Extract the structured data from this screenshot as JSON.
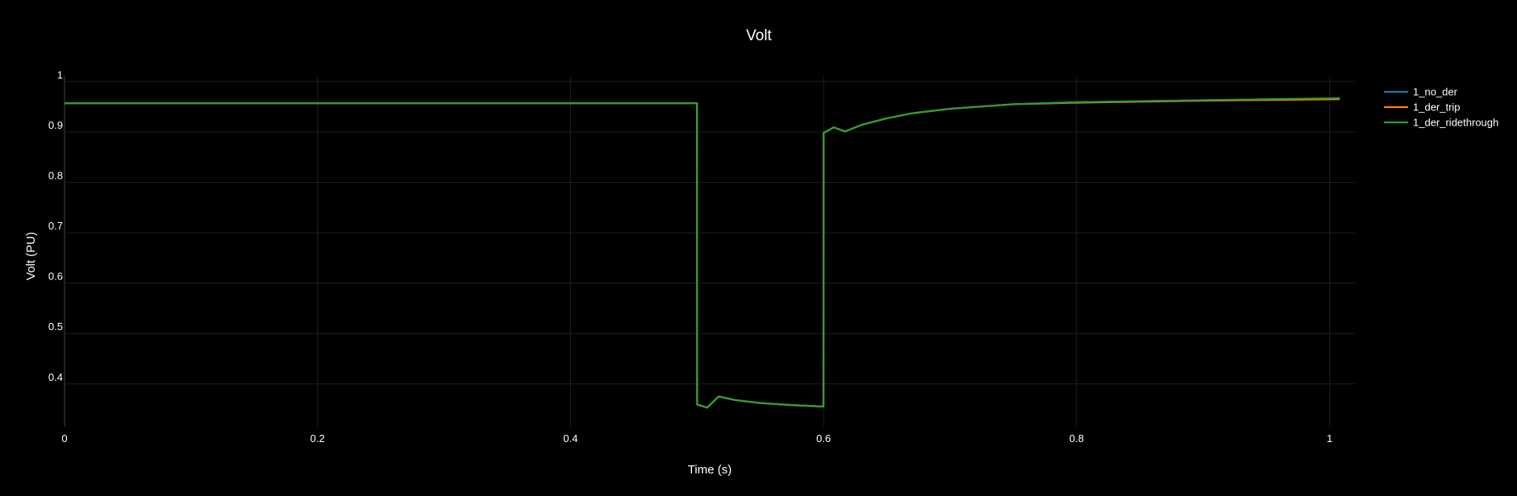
{
  "chart_data": {
    "type": "line",
    "title": "Volt",
    "xlabel": "Time (s)",
    "ylabel": "Volt (PU)",
    "xlim": [
      0,
      1.02
    ],
    "ylim": [
      0.315,
      1.01
    ],
    "x_ticks": [
      0,
      0.2,
      0.4,
      0.6,
      0.8,
      1
    ],
    "x_tick_labels": [
      "0",
      "0.2",
      "0.4",
      "0.6",
      "0.8",
      "1"
    ],
    "y_ticks": [
      0.4,
      0.5,
      0.6,
      0.7,
      0.8,
      0.9,
      1
    ],
    "y_tick_labels": [
      "0.4",
      "0.5",
      "0.6",
      "0.7",
      "0.8",
      "0.9",
      "1"
    ],
    "grid": true,
    "legend_position": "top-right",
    "x": [
      0,
      0.5,
      0.5001,
      0.508,
      0.517,
      0.53,
      0.55,
      0.575,
      0.5999,
      0.6,
      0.608,
      0.617,
      0.63,
      0.65,
      0.67,
      0.7,
      0.75,
      0.8,
      0.9,
      1.008
    ],
    "series": [
      {
        "name": "1_no_der",
        "color": "#1f77b4",
        "values": [
          0.957,
          0.957,
          0.359,
          0.353,
          0.375,
          0.368,
          0.362,
          0.358,
          0.355,
          0.898,
          0.909,
          0.901,
          0.914,
          0.927,
          0.937,
          0.946,
          0.955,
          0.959,
          0.963,
          0.966
        ]
      },
      {
        "name": "1_der_trip",
        "color": "#ff7f0e",
        "values": [
          0.957,
          0.957,
          0.359,
          0.353,
          0.375,
          0.368,
          0.362,
          0.358,
          0.355,
          0.898,
          0.909,
          0.901,
          0.914,
          0.927,
          0.937,
          0.946,
          0.955,
          0.958,
          0.962,
          0.965
        ]
      },
      {
        "name": "1_der_ridethrough",
        "color": "#2ca02c",
        "values": [
          0.957,
          0.957,
          0.359,
          0.353,
          0.375,
          0.368,
          0.362,
          0.358,
          0.355,
          0.898,
          0.909,
          0.901,
          0.914,
          0.927,
          0.937,
          0.946,
          0.955,
          0.959,
          0.963,
          0.967
        ]
      }
    ]
  }
}
